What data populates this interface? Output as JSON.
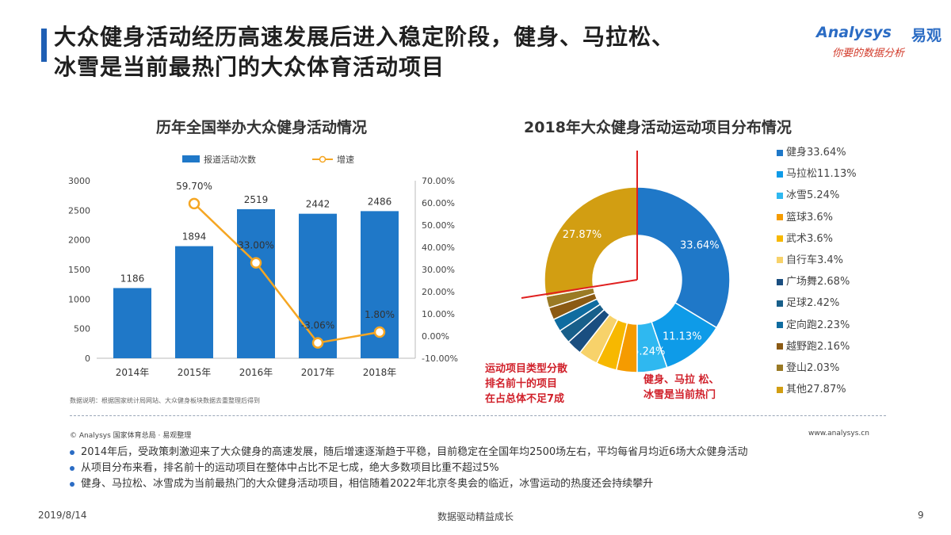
{
  "slide": {
    "title_line1": "大众健身活动经历高速发展后进入稳定阶段，健身、马拉松、",
    "title_line2": "冰雪是当前最热门的大众体育活动项目"
  },
  "logo": {
    "text_en": "Analysys",
    "text_cn": "易观",
    "slogan": "你要的数据分析"
  },
  "notes": {
    "source": "数据说明：根据国家统计局网站、大众健身板块数据去重整理后得到",
    "copyright": "© Analysys 国家体育总局 · 易观整理",
    "website": "www.analysys.cn",
    "callout_left": [
      "运动项目类型分散",
      "排名前十的项目",
      "在占总体不足7成"
    ],
    "callout_right": [
      "健身、马拉 松、",
      "冰雪是当前热门"
    ]
  },
  "bullets": [
    "2014年后，受政策刺激迎来了大众健身的高速发展，随后增速逐渐趋于平稳，目前稳定在全国年均2500场左右，平均每省月均近6场大众健身活动",
    "从项目分布来看，排名前十的运动项目在整体中占比不足七成，绝大多数项目比重不超过5%",
    "健身、马拉松、冰雪成为当前最热门的大众健身活动项目，相信随着2022年北京冬奥会的临近，冰雪运动的热度还会持续攀升"
  ],
  "footer": {
    "date": "2019/8/14",
    "slogan": "数据驱动精益成长",
    "page": "9"
  },
  "chart_data": [
    {
      "type": "bar",
      "title": "历年全国举办大众健身活动情况",
      "categories": [
        "2014年",
        "2015年",
        "2016年",
        "2017年",
        "2018年"
      ],
      "series": [
        {
          "name": "报道活动次数",
          "type": "bar",
          "axis": "left",
          "values": [
            1186,
            1894,
            2519,
            2442,
            2486
          ],
          "labels": [
            "1186",
            "1894",
            "2519",
            "2442",
            "2486"
          ],
          "color": "#1f78c8"
        },
        {
          "name": "增速",
          "type": "line",
          "axis": "right",
          "values": [
            null,
            59.7,
            33.0,
            -3.06,
            1.8
          ],
          "labels": [
            "",
            "59.70%",
            "33.00%",
            "-3.06%",
            "1.80%"
          ],
          "color": "#f5a623"
        }
      ],
      "yticks_left": [
        "3000",
        "2500",
        "2000",
        "1500",
        "1000",
        "500",
        "0"
      ],
      "yticks_right": [
        "70.00%",
        "60.00%",
        "50.00%",
        "40.00%",
        "30.00%",
        "20.00%",
        "10.00%",
        "0.00%",
        "-10.00%"
      ],
      "ylim_left": [
        0,
        3000
      ],
      "ylim_right": [
        -10,
        70
      ],
      "grid": false,
      "legend": "top"
    },
    {
      "type": "pie",
      "title": "2018年大众健身活动运动项目分布情况",
      "donut": true,
      "labels": [
        "健身",
        "马拉松",
        "冰雪",
        "篮球",
        "武术",
        "自行车",
        "广场舞",
        "足球",
        "定向跑",
        "越野跑",
        "登山",
        "其他"
      ],
      "values": [
        33.64,
        11.13,
        5.24,
        3.6,
        3.6,
        3.4,
        2.68,
        2.42,
        2.23,
        2.16,
        2.03,
        27.87
      ],
      "legend_labels": [
        "健身33.64%",
        "马拉松11.13%",
        "冰雪5.24%",
        "篮球3.6%",
        "武术3.6%",
        "自行车3.4%",
        "广场舞2.68%",
        "足球2.42%",
        "定向跑2.23%",
        "越野跑2.16%",
        "登山2.03%",
        "其他27.87%"
      ],
      "slice_labels": [
        "33.64%",
        "11.13%",
        "5.24%",
        "",
        "",
        "",
        "",
        "",
        "",
        "",
        "",
        "27.87%"
      ],
      "colors": [
        "#1f78c8",
        "#0e9be8",
        "#2fb8f0",
        "#f59b00",
        "#f7b800",
        "#f7d26a",
        "#1a4e80",
        "#185f8a",
        "#0f6ca0",
        "#8b5a14",
        "#9a7a25",
        "#d29e12"
      ],
      "legend": "right"
    }
  ]
}
